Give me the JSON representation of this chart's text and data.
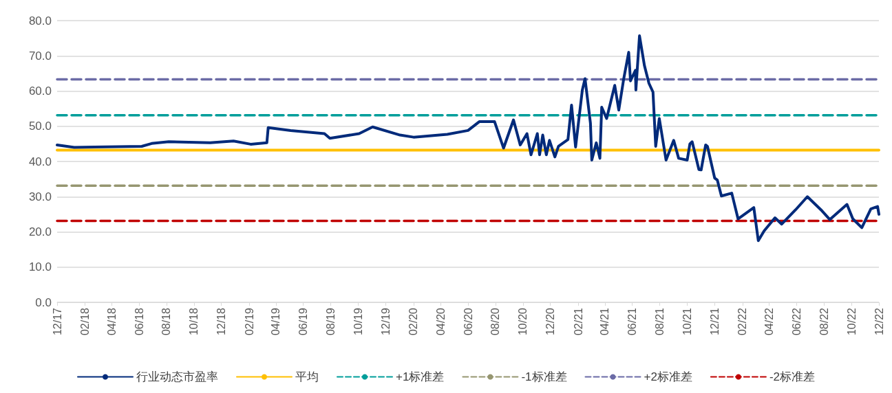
{
  "chart_data": {
    "type": "line",
    "xlim": [
      "2017-12-01",
      "2022-12-01"
    ],
    "ylim": [
      0,
      80
    ],
    "yticks": [
      {
        "value": 0,
        "label": "0.0"
      },
      {
        "value": 10,
        "label": "10.0"
      },
      {
        "value": 20,
        "label": "20.0"
      },
      {
        "value": 30,
        "label": "30.0"
      },
      {
        "value": 40,
        "label": "40.0"
      },
      {
        "value": 50,
        "label": "50.0"
      },
      {
        "value": 60,
        "label": "60.0"
      },
      {
        "value": 70,
        "label": "70.0"
      },
      {
        "value": 80,
        "label": "80.0"
      }
    ],
    "xticks": [
      {
        "value": "2017-12-01",
        "label": "12/17"
      },
      {
        "value": "2018-02-01",
        "label": "02/18"
      },
      {
        "value": "2018-04-01",
        "label": "04/18"
      },
      {
        "value": "2018-06-01",
        "label": "06/18"
      },
      {
        "value": "2018-08-01",
        "label": "08/18"
      },
      {
        "value": "2018-10-01",
        "label": "10/18"
      },
      {
        "value": "2018-12-01",
        "label": "12/18"
      },
      {
        "value": "2019-02-01",
        "label": "02/19"
      },
      {
        "value": "2019-04-01",
        "label": "04/19"
      },
      {
        "value": "2019-06-01",
        "label": "06/19"
      },
      {
        "value": "2019-08-01",
        "label": "08/19"
      },
      {
        "value": "2019-10-01",
        "label": "10/19"
      },
      {
        "value": "2019-12-01",
        "label": "12/19"
      },
      {
        "value": "2020-02-01",
        "label": "02/20"
      },
      {
        "value": "2020-04-01",
        "label": "04/20"
      },
      {
        "value": "2020-06-01",
        "label": "06/20"
      },
      {
        "value": "2020-08-01",
        "label": "08/20"
      },
      {
        "value": "2020-10-01",
        "label": "10/20"
      },
      {
        "value": "2020-12-01",
        "label": "12/20"
      },
      {
        "value": "2021-02-01",
        "label": "02/21"
      },
      {
        "value": "2021-04-01",
        "label": "04/21"
      },
      {
        "value": "2021-06-01",
        "label": "06/21"
      },
      {
        "value": "2021-08-01",
        "label": "08/21"
      },
      {
        "value": "2021-10-01",
        "label": "10/21"
      },
      {
        "value": "2021-12-01",
        "label": "12/21"
      },
      {
        "value": "2022-02-01",
        "label": "02/22"
      },
      {
        "value": "2022-04-01",
        "label": "04/22"
      },
      {
        "value": "2022-06-01",
        "label": "06/22"
      },
      {
        "value": "2022-08-01",
        "label": "08/22"
      },
      {
        "value": "2022-10-01",
        "label": "10/22"
      },
      {
        "value": "2022-12-01",
        "label": "12/22"
      }
    ],
    "grid": "y",
    "legend": "bottom",
    "marker": "none",
    "series": [
      {
        "name": "行业动态市盈率",
        "color": "#002a7a",
        "line_style": "solid",
        "x": [
          "2017-12-01",
          "2018-01-08",
          "2018-02-22",
          "2018-06-07",
          "2018-06-29",
          "2018-08-06",
          "2018-11-06",
          "2018-12-28",
          "2019-02-04",
          "2019-03-12",
          "2019-03-15",
          "2019-05-04",
          "2019-07-18",
          "2019-07-30",
          "2019-10-03",
          "2019-11-02",
          "2020-01-02",
          "2020-02-01",
          "2020-04-16",
          "2020-06-01",
          "2020-06-26",
          "2020-07-30",
          "2020-08-19",
          "2020-09-10",
          "2020-09-25",
          "2020-10-10",
          "2020-10-19",
          "2020-11-02",
          "2020-11-07",
          "2020-11-14",
          "2020-11-22",
          "2020-11-29",
          "2020-12-11",
          "2020-12-19",
          "2021-01-09",
          "2021-01-17",
          "2021-01-26",
          "2021-02-10",
          "2021-02-16",
          "2021-02-28",
          "2021-03-03",
          "2021-03-13",
          "2021-03-21",
          "2021-03-25",
          "2021-04-05",
          "2021-04-23",
          "2021-05-02",
          "2021-05-13",
          "2021-05-24",
          "2021-05-28",
          "2021-06-08",
          "2021-06-09",
          "2021-06-17",
          "2021-06-28",
          "2021-07-08",
          "2021-07-17",
          "2021-07-23",
          "2021-07-31",
          "2021-08-15",
          "2021-09-01",
          "2021-09-12",
          "2021-10-01",
          "2021-10-07",
          "2021-10-12",
          "2021-10-27",
          "2021-11-01",
          "2021-11-11",
          "2021-11-15",
          "2021-12-01",
          "2021-12-07",
          "2021-12-16",
          "2022-01-08",
          "2022-01-22",
          "2022-02-26",
          "2022-03-08",
          "2022-03-21",
          "2022-04-14",
          "2022-04-29",
          "2022-05-30",
          "2022-06-25",
          "2022-07-25",
          "2022-08-14",
          "2022-09-21",
          "2022-10-04",
          "2022-10-24",
          "2022-11-13",
          "2022-11-28",
          "2022-12-01"
        ],
        "values": [
          44.7,
          44.0,
          44.1,
          44.3,
          45.1,
          45.6,
          45.3,
          45.8,
          44.9,
          45.3,
          49.6,
          48.8,
          47.9,
          46.6,
          47.9,
          49.8,
          47.5,
          46.9,
          47.7,
          48.8,
          51.3,
          51.3,
          43.8,
          51.8,
          44.7,
          47.9,
          41.9,
          47.9,
          41.9,
          47.5,
          41.9,
          46.0,
          41.3,
          44.3,
          46.2,
          56.0,
          44.1,
          60.3,
          63.5,
          50.9,
          40.4,
          45.3,
          40.9,
          55.4,
          52.2,
          61.6,
          54.6,
          63.5,
          71.0,
          62.9,
          65.9,
          60.3,
          75.7,
          67.2,
          62.2,
          59.7,
          44.3,
          52.2,
          40.4,
          46.0,
          40.9,
          40.4,
          45.0,
          45.6,
          37.7,
          37.6,
          44.7,
          44.3,
          35.3,
          34.7,
          30.2,
          31.0,
          23.7,
          26.9,
          17.5,
          20.3,
          24.0,
          22.2,
          26.3,
          30.0,
          26.3,
          23.5,
          27.8,
          23.7,
          21.2,
          26.5,
          27.2,
          25.0
        ]
      },
      {
        "name": "平均",
        "color": "#ffc000",
        "line_style": "solid",
        "x": [
          "2017-12-01",
          "2022-12-01"
        ],
        "values": [
          43.2,
          43.2
        ]
      },
      {
        "name": "+1标准差",
        "color": "#009e9a",
        "line_style": "dashed",
        "x": [
          "2017-12-01",
          "2022-12-01"
        ],
        "values": [
          53.1,
          53.1
        ]
      },
      {
        "name": "-1标准差",
        "color": "#969670",
        "line_style": "dashed",
        "x": [
          "2017-12-01",
          "2022-12-01"
        ],
        "values": [
          33.1,
          33.1
        ]
      },
      {
        "name": "+2标准差",
        "color": "#6b6ba6",
        "line_style": "dashed",
        "x": [
          "2017-12-01",
          "2022-12-01"
        ],
        "values": [
          63.3,
          63.3
        ]
      },
      {
        "name": "-2标准差",
        "color": "#c00000",
        "line_style": "dashed",
        "x": [
          "2017-12-01",
          "2022-12-01"
        ],
        "values": [
          23.1,
          23.1
        ]
      }
    ]
  }
}
